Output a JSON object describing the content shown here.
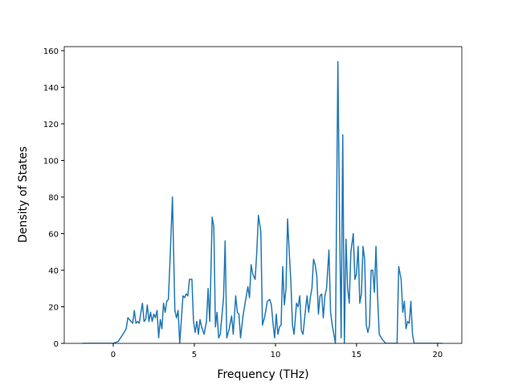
{
  "chart_data": {
    "type": "line",
    "x_label": "Frequency (THz)",
    "y_label": "Density of States",
    "xlim": [
      -3.02,
      21.49
    ],
    "ylim": [
      0,
      162.2
    ],
    "xticks": [
      0,
      5,
      10,
      15,
      20
    ],
    "yticks": [
      0,
      20,
      40,
      60,
      80,
      100,
      120,
      140,
      160
    ],
    "x": [
      -1.9,
      0,
      0.3,
      0.6,
      0.8,
      0.9,
      1.1,
      1.2,
      1.3,
      1.4,
      1.5,
      1.6,
      1.8,
      1.9,
      2.0,
      2.1,
      2.2,
      2.3,
      2.4,
      2.5,
      2.6,
      2.7,
      2.8,
      2.9,
      3.0,
      3.1,
      3.2,
      3.3,
      3.4,
      3.5,
      3.65,
      3.8,
      3.9,
      4.0,
      4.1,
      4.3,
      4.4,
      4.5,
      4.6,
      4.7,
      4.85,
      4.95,
      5.05,
      5.15,
      5.25,
      5.35,
      5.45,
      5.6,
      5.75,
      5.85,
      5.95,
      6.1,
      6.2,
      6.3,
      6.4,
      6.5,
      6.6,
      6.8,
      6.9,
      7.0,
      7.15,
      7.3,
      7.4,
      7.55,
      7.65,
      7.75,
      7.85,
      8.0,
      8.15,
      8.3,
      8.4,
      8.5,
      8.6,
      8.75,
      8.85,
      8.95,
      9.1,
      9.2,
      9.35,
      9.5,
      9.65,
      9.75,
      9.85,
      9.95,
      10.05,
      10.15,
      10.25,
      10.35,
      10.45,
      10.55,
      10.65,
      10.75,
      10.85,
      10.95,
      11.05,
      11.15,
      11.3,
      11.4,
      11.5,
      11.6,
      11.7,
      11.85,
      11.95,
      12.05,
      12.15,
      12.25,
      12.35,
      12.45,
      12.55,
      12.65,
      12.75,
      12.85,
      12.95,
      13.05,
      13.15,
      13.3,
      13.4,
      13.5,
      13.6,
      13.7,
      13.85,
      13.95,
      14.05,
      14.15,
      14.25,
      14.35,
      14.45,
      14.55,
      14.65,
      14.8,
      14.9,
      15.0,
      15.1,
      15.2,
      15.3,
      15.4,
      15.5,
      15.6,
      15.7,
      15.8,
      15.9,
      16.0,
      16.1,
      16.2,
      16.3,
      16.4,
      16.6,
      16.8,
      17.5,
      17.6,
      17.75,
      17.85,
      17.95,
      18.05,
      18.15,
      18.25,
      18.35,
      18.45,
      18.55,
      20.3
    ],
    "series": [
      {
        "color": "#1f77b4",
        "values": [
          0,
          0,
          1,
          5,
          8,
          14,
          12,
          11,
          18,
          11,
          12,
          11,
          22,
          12,
          13,
          21,
          12,
          17,
          12,
          16,
          14,
          18,
          3,
          13,
          8,
          22,
          17,
          23,
          24,
          45,
          80,
          18,
          14,
          18,
          0,
          26,
          25,
          27,
          26,
          35,
          35,
          12,
          6,
          12,
          5,
          13,
          9,
          5,
          12,
          30,
          12,
          69,
          64,
          9,
          17,
          3,
          5,
          25,
          56,
          3,
          8,
          15,
          5,
          26,
          17,
          16,
          3,
          15,
          23,
          31,
          25,
          43,
          38,
          35,
          50,
          70,
          61,
          10,
          15,
          23,
          24,
          21,
          11,
          3,
          16,
          5,
          9,
          10,
          42,
          21,
          30,
          68,
          50,
          34,
          10,
          5,
          22,
          20,
          26,
          7,
          5,
          18,
          26,
          17,
          25,
          30,
          46,
          43,
          37,
          16,
          26,
          27,
          14,
          26,
          30,
          51,
          17,
          10,
          5,
          0,
          154,
          70,
          3,
          114,
          0,
          57,
          30,
          22,
          50,
          60,
          35,
          38,
          53,
          22,
          27,
          53,
          46,
          10,
          6,
          10,
          40,
          40,
          28,
          53,
          25,
          5,
          2,
          0,
          0,
          42,
          35,
          17,
          23,
          8,
          12,
          11,
          23,
          5,
          0,
          0
        ]
      }
    ]
  }
}
